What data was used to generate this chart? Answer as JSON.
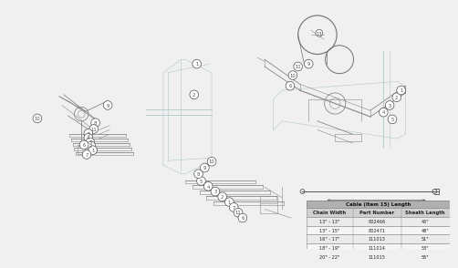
{
  "bg_color": "#f0f0f0",
  "diagram_color": "#888888",
  "light_blue": "#b0c8c8",
  "dark_line": "#606060",
  "table_title": "Cable (Item 15) Length",
  "table_headers": [
    "Chain Width",
    "Part Number",
    "Sheath Length"
  ],
  "table_rows": [
    [
      "13\" - 13\"",
      "802466",
      "45\""
    ],
    [
      "13\" - 15\"",
      "802471",
      "48\""
    ],
    [
      "16\" - 17\"",
      "111013",
      "51\""
    ],
    [
      "18\" - 19\"",
      "111014",
      "53\""
    ],
    [
      "20\" - 22\"",
      "111015",
      "55\""
    ]
  ],
  "sheath_label": "Sheath Length"
}
